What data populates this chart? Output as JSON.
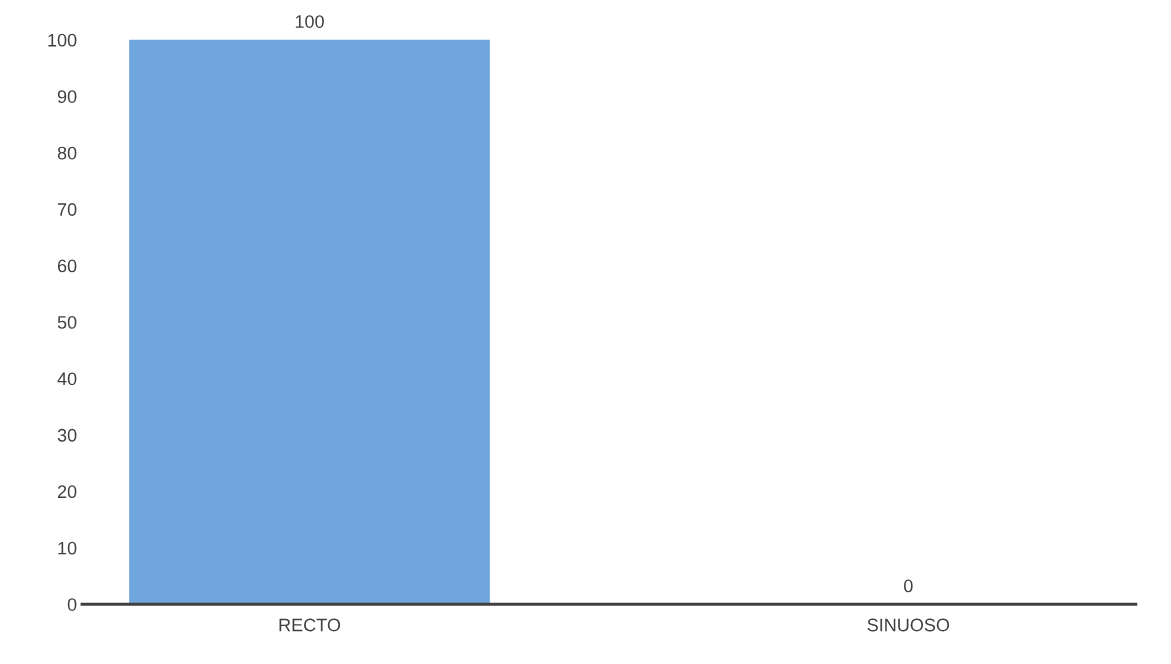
{
  "chart_data": {
    "type": "bar",
    "categories": [
      "RECTO",
      "SINUOSO"
    ],
    "values": [
      100,
      0
    ],
    "color": "#6fa6dc",
    "ylim": [
      0,
      100
    ],
    "yticks": [
      0,
      10,
      20,
      30,
      40,
      50,
      60,
      70,
      80,
      90,
      100
    ],
    "grid": false,
    "data_labels": true
  }
}
